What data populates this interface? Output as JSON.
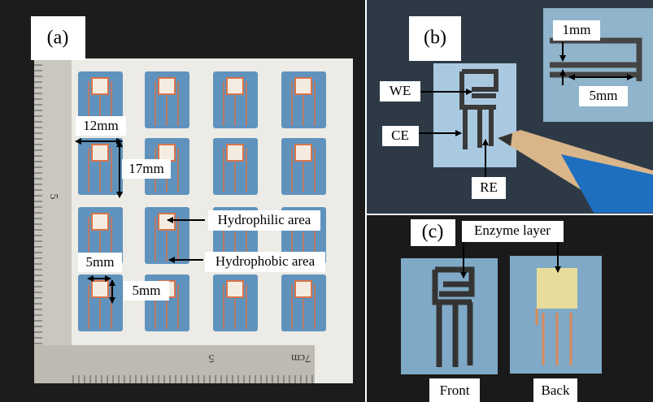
{
  "panel_a": {
    "label": "(a)",
    "width_label": "12mm",
    "height_label": "17mm",
    "hydrophilic": "Hydrophilic area",
    "hydrophobic": "Hydrophobic area",
    "zone_width": "5mm",
    "zone_height": "5mm",
    "ruler_left": "5",
    "ruler_bottom": [
      "5",
      "7cm"
    ]
  },
  "panel_b": {
    "label": "(b)",
    "we": "WE",
    "ce": "CE",
    "re": "RE",
    "gap": "1mm",
    "length": "5mm"
  },
  "panel_c": {
    "label": "(c)",
    "enzyme": "Enzyme layer",
    "front": "Front",
    "back": "Back"
  }
}
